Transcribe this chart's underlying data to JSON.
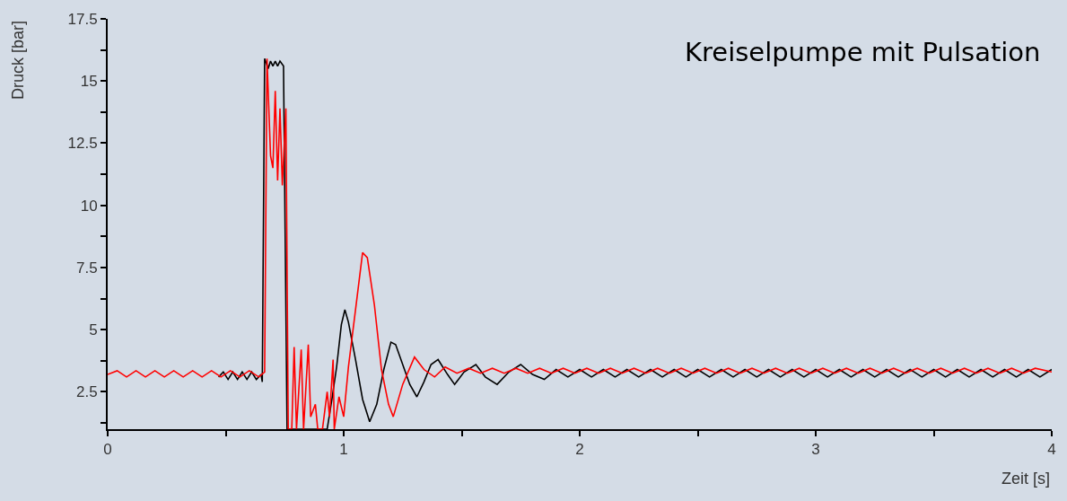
{
  "chart_data": {
    "type": "line",
    "xlabel": "Zeit [s]",
    "ylabel": "Druck [bar]",
    "annotations": [
      "Kreiselpumpe mit Pulsation"
    ],
    "xlim": [
      0,
      4
    ],
    "ylim": [
      1,
      17.5
    ],
    "xticks": [
      0,
      {
        "value": 0.5,
        "label": null
      },
      1,
      {
        "value": 1.5,
        "label": null
      },
      2,
      {
        "value": 2.5,
        "label": null
      },
      3,
      {
        "value": 3.5,
        "label": null
      },
      4
    ],
    "yticks": [
      {
        "value": 1.25,
        "label": null
      },
      2.5,
      {
        "value": 3.75,
        "label": null
      },
      5,
      {
        "value": 6.25,
        "label": null
      },
      7.5,
      {
        "value": 8.75,
        "label": null
      },
      10,
      {
        "value": 11.25,
        "label": null
      },
      12.5,
      {
        "value": 13.75,
        "label": null
      },
      15,
      {
        "value": 16.25,
        "label": null
      },
      17.5
    ],
    "grid": false,
    "legend": false,
    "marker": "none",
    "line_style": "solid",
    "series": [
      {
        "color": "#000000",
        "x": [
          0.47,
          0.49,
          0.51,
          0.53,
          0.55,
          0.57,
          0.59,
          0.61,
          0.63,
          0.65,
          0.655,
          0.665,
          0.68,
          0.69,
          0.7,
          0.71,
          0.72,
          0.73,
          0.745,
          0.76,
          0.93,
          0.95,
          0.97,
          0.99,
          1.005,
          1.02,
          1.05,
          1.08,
          1.11,
          1.14,
          1.17,
          1.2,
          1.22,
          1.25,
          1.28,
          1.31,
          1.34,
          1.37,
          1.4,
          1.44,
          1.47,
          1.51,
          1.56,
          1.6,
          1.65,
          1.7,
          1.75,
          1.8,
          1.85,
          1.9,
          1.95,
          2.0,
          2.05,
          2.1,
          2.15,
          2.2,
          2.25,
          2.3,
          2.35,
          2.4,
          2.45,
          2.5,
          2.55,
          2.6,
          2.65,
          2.7,
          2.75,
          2.8,
          2.85,
          2.9,
          2.95,
          3.0,
          3.05,
          3.1,
          3.15,
          3.2,
          3.25,
          3.3,
          3.35,
          3.4,
          3.45,
          3.5,
          3.55,
          3.6,
          3.65,
          3.7,
          3.75,
          3.8,
          3.85,
          3.9,
          3.95,
          4.0
        ],
        "values": [
          3.1,
          3.3,
          3.0,
          3.3,
          3.0,
          3.3,
          3.0,
          3.3,
          3.0,
          3.2,
          2.9,
          15.9,
          15.5,
          15.8,
          15.6,
          15.8,
          15.6,
          15.8,
          15.6,
          1.0,
          1.0,
          2.2,
          3.5,
          5.2,
          5.8,
          5.3,
          3.8,
          2.2,
          1.3,
          2.0,
          3.4,
          4.5,
          4.4,
          3.6,
          2.8,
          2.3,
          2.9,
          3.6,
          3.8,
          3.2,
          2.8,
          3.3,
          3.6,
          3.1,
          2.8,
          3.3,
          3.6,
          3.2,
          3.0,
          3.4,
          3.1,
          3.4,
          3.1,
          3.4,
          3.1,
          3.4,
          3.1,
          3.4,
          3.1,
          3.4,
          3.1,
          3.4,
          3.1,
          3.4,
          3.1,
          3.4,
          3.1,
          3.4,
          3.1,
          3.4,
          3.1,
          3.4,
          3.1,
          3.4,
          3.1,
          3.4,
          3.1,
          3.4,
          3.1,
          3.4,
          3.1,
          3.4,
          3.1,
          3.4,
          3.1,
          3.4,
          3.1,
          3.4,
          3.1,
          3.4,
          3.1,
          3.4
        ]
      },
      {
        "color": "#ff0000",
        "x": [
          0,
          0.04,
          0.08,
          0.12,
          0.16,
          0.2,
          0.24,
          0.28,
          0.32,
          0.36,
          0.4,
          0.44,
          0.48,
          0.52,
          0.56,
          0.6,
          0.64,
          0.665,
          0.675,
          0.69,
          0.7,
          0.71,
          0.72,
          0.73,
          0.74,
          0.755,
          0.765,
          0.78,
          0.79,
          0.8,
          0.82,
          0.83,
          0.85,
          0.86,
          0.88,
          0.89,
          0.91,
          0.93,
          0.94,
          0.955,
          0.96,
          0.98,
          1.0,
          1.02,
          1.05,
          1.08,
          1.1,
          1.13,
          1.16,
          1.19,
          1.21,
          1.25,
          1.3,
          1.34,
          1.385,
          1.43,
          1.48,
          1.53,
          1.58,
          1.63,
          1.68,
          1.73,
          1.78,
          1.83,
          1.88,
          1.93,
          1.98,
          2.03,
          2.08,
          2.13,
          2.18,
          2.23,
          2.28,
          2.33,
          2.38,
          2.43,
          2.48,
          2.53,
          2.58,
          2.63,
          2.68,
          2.73,
          2.78,
          2.83,
          2.88,
          2.93,
          2.98,
          3.03,
          3.08,
          3.13,
          3.18,
          3.23,
          3.28,
          3.33,
          3.38,
          3.43,
          3.48,
          3.53,
          3.58,
          3.63,
          3.68,
          3.73,
          3.78,
          3.83,
          3.88,
          3.93,
          4.0
        ],
        "values": [
          3.2,
          3.35,
          3.1,
          3.35,
          3.1,
          3.35,
          3.1,
          3.35,
          3.1,
          3.35,
          3.1,
          3.35,
          3.1,
          3.35,
          3.1,
          3.35,
          3.1,
          3.3,
          15.9,
          12.0,
          11.5,
          14.6,
          11.0,
          13.9,
          10.8,
          13.9,
          1.0,
          1.0,
          4.3,
          1.0,
          4.2,
          1.0,
          4.4,
          1.5,
          2.0,
          1.0,
          1.0,
          2.5,
          1.5,
          3.8,
          1.0,
          2.3,
          1.5,
          3.5,
          5.8,
          8.1,
          7.9,
          6.0,
          3.4,
          2.0,
          1.5,
          2.8,
          3.9,
          3.4,
          3.1,
          3.5,
          3.25,
          3.45,
          3.25,
          3.45,
          3.25,
          3.45,
          3.25,
          3.45,
          3.25,
          3.45,
          3.25,
          3.45,
          3.25,
          3.45,
          3.25,
          3.45,
          3.25,
          3.45,
          3.25,
          3.45,
          3.25,
          3.45,
          3.25,
          3.45,
          3.25,
          3.45,
          3.25,
          3.45,
          3.25,
          3.45,
          3.25,
          3.45,
          3.25,
          3.45,
          3.25,
          3.45,
          3.25,
          3.45,
          3.25,
          3.45,
          3.25,
          3.45,
          3.25,
          3.45,
          3.25,
          3.45,
          3.25,
          3.45,
          3.25,
          3.45,
          3.3
        ]
      }
    ]
  }
}
